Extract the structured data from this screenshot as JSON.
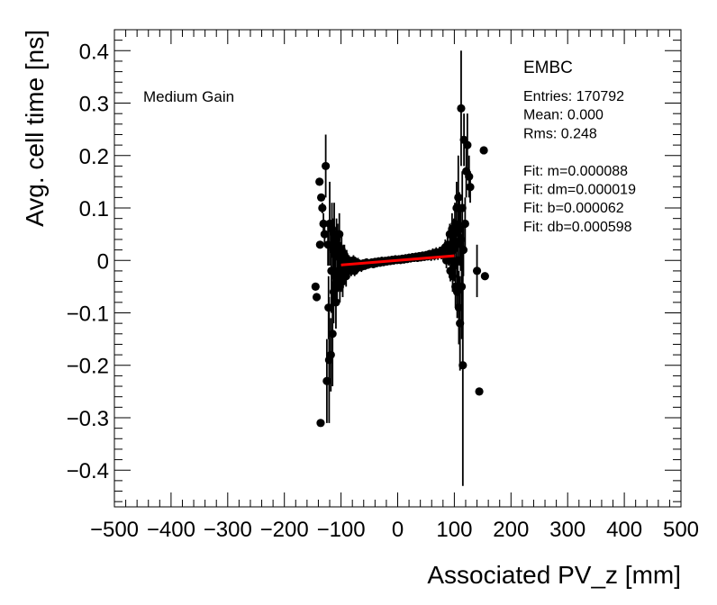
{
  "chart_data": {
    "type": "scatter",
    "xlabel": "Associated PV_z [mm]",
    "ylabel": "Avg. cell time [ns]",
    "xlim": [
      -500,
      500
    ],
    "ylim": [
      -0.47,
      0.44
    ],
    "x_ticks": [
      -500,
      -400,
      -300,
      -200,
      -100,
      0,
      100,
      200,
      300,
      400,
      500
    ],
    "x_tick_labels": [
      "−500",
      "−400",
      "−300",
      "−200",
      "−100",
      "0",
      "100",
      "200",
      "300",
      "400",
      "500"
    ],
    "y_ticks": [
      -0.4,
      -0.3,
      -0.2,
      -0.1,
      0,
      0.1,
      0.2,
      0.3,
      0.4
    ],
    "y_tick_labels": [
      "−0.4",
      "−0.3",
      "−0.2",
      "−0.1",
      "0",
      "0.1",
      "0.2",
      "0.3",
      "0.4"
    ],
    "annotation_left": "Medium Gain",
    "stats": {
      "title": "EMBC",
      "lines": [
        "Entries: 170792",
        "Mean: 0.000",
        "Rms: 0.248",
        "",
        "Fit: m=0.000088",
        "Fit: dm=0.000019",
        "Fit: b=0.000062",
        "Fit: db=0.000598"
      ]
    },
    "fit_line": {
      "x": [
        -100,
        100
      ],
      "y": [
        -0.0087,
        0.0089
      ],
      "color": "#ff0000"
    },
    "series": [
      {
        "name": "data",
        "color": "#000000",
        "points": [
          [
            -145,
            -0.05,
            0.0
          ],
          [
            -143,
            -0.07,
            0.0
          ],
          [
            -138,
            0.15,
            0.0
          ],
          [
            -137,
            0.03,
            0.0
          ],
          [
            -136,
            -0.31,
            0.0
          ],
          [
            -135,
            0.12,
            0.0
          ],
          [
            -133,
            0.1,
            0.01
          ],
          [
            -131,
            0.07,
            0.02
          ],
          [
            -129,
            0.05,
            0.02
          ],
          [
            -127,
            0.18,
            0.06
          ],
          [
            -125,
            -0.23,
            0.08
          ],
          [
            -123,
            0.03,
            0.04
          ],
          [
            -122,
            -0.09,
            0.06
          ],
          [
            -121,
            -0.19,
            0.12
          ],
          [
            -120,
            0.07,
            0.08
          ],
          [
            -118,
            -0.18,
            0.07
          ],
          [
            -117,
            -0.02,
            0.08
          ],
          [
            -116,
            0.06,
            0.05
          ],
          [
            -115,
            -0.14,
            0.1
          ],
          [
            -114,
            0.02,
            0.06
          ],
          [
            -113,
            -0.06,
            0.06
          ],
          [
            -112,
            0.05,
            0.06
          ],
          [
            -111,
            -0.03,
            0.05
          ],
          [
            -110,
            0.01,
            0.04
          ],
          [
            -109,
            -0.08,
            0.05
          ],
          [
            -108,
            0.04,
            0.04
          ],
          [
            -107,
            -0.04,
            0.04
          ],
          [
            -106,
            0.03,
            0.04
          ],
          [
            -105,
            -0.02,
            0.04
          ],
          [
            -104,
            0.02,
            0.03
          ],
          [
            -103,
            0.05,
            0.04
          ],
          [
            -102,
            -0.05,
            0.03
          ],
          [
            -101,
            0.0,
            0.03
          ],
          [
            -100,
            -0.03,
            0.03
          ],
          [
            -99,
            0.02,
            0.03
          ],
          [
            -98,
            -0.01,
            0.02
          ],
          [
            -97,
            -0.04,
            0.03
          ],
          [
            -96,
            0.01,
            0.02
          ],
          [
            -95,
            -0.02,
            0.02
          ],
          [
            -94,
            0.01,
            0.02
          ],
          [
            -93,
            -0.02,
            0.02
          ],
          [
            -92,
            0.0,
            0.02
          ],
          [
            -91,
            -0.03,
            0.02
          ],
          [
            -90,
            0.0,
            0.02
          ],
          [
            -88,
            -0.02,
            0.01
          ],
          [
            -86,
            0.0,
            0.01
          ],
          [
            -84,
            -0.01,
            0.01
          ],
          [
            -82,
            -0.02,
            0.01
          ],
          [
            -80,
            -0.01,
            0.01
          ],
          [
            -78,
            0.0,
            0.01
          ],
          [
            -76,
            -0.02,
            0.01
          ],
          [
            -74,
            -0.01,
            0.01
          ],
          [
            -72,
            -0.015,
            0.01
          ],
          [
            -70,
            -0.005,
            0.01
          ],
          [
            -67,
            -0.01,
            0.01
          ],
          [
            -64,
            -0.012,
            0.01
          ],
          [
            -61,
            -0.006,
            0.008
          ],
          [
            -58,
            -0.01,
            0.008
          ],
          [
            -55,
            -0.004,
            0.008
          ],
          [
            -52,
            -0.008,
            0.008
          ],
          [
            -49,
            -0.006,
            0.008
          ],
          [
            -46,
            -0.004,
            0.008
          ],
          [
            -43,
            -0.007,
            0.008
          ],
          [
            -40,
            -0.003,
            0.008
          ],
          [
            -37,
            -0.005,
            0.008
          ],
          [
            -34,
            -0.002,
            0.008
          ],
          [
            -31,
            -0.004,
            0.008
          ],
          [
            -28,
            -0.001,
            0.008
          ],
          [
            -25,
            -0.003,
            0.008
          ],
          [
            -22,
            -0.001,
            0.008
          ],
          [
            -19,
            -0.002,
            0.008
          ],
          [
            -16,
            0.0,
            0.008
          ],
          [
            -13,
            -0.001,
            0.008
          ],
          [
            -10,
            0.001,
            0.008
          ],
          [
            -7,
            0.0,
            0.008
          ],
          [
            -4,
            0.002,
            0.008
          ],
          [
            -1,
            0.001,
            0.008
          ],
          [
            2,
            0.002,
            0.008
          ],
          [
            5,
            0.001,
            0.008
          ],
          [
            8,
            0.003,
            0.008
          ],
          [
            11,
            0.002,
            0.008
          ],
          [
            14,
            0.004,
            0.008
          ],
          [
            17,
            0.003,
            0.008
          ],
          [
            20,
            0.005,
            0.008
          ],
          [
            23,
            0.004,
            0.008
          ],
          [
            26,
            0.006,
            0.008
          ],
          [
            29,
            0.005,
            0.008
          ],
          [
            32,
            0.007,
            0.008
          ],
          [
            35,
            0.005,
            0.008
          ],
          [
            38,
            0.008,
            0.008
          ],
          [
            41,
            0.006,
            0.008
          ],
          [
            44,
            0.009,
            0.008
          ],
          [
            47,
            0.007,
            0.008
          ],
          [
            50,
            0.01,
            0.008
          ],
          [
            53,
            0.008,
            0.008
          ],
          [
            56,
            0.012,
            0.008
          ],
          [
            59,
            0.009,
            0.01
          ],
          [
            62,
            0.013,
            0.01
          ],
          [
            65,
            0.01,
            0.01
          ],
          [
            68,
            0.015,
            0.01
          ],
          [
            71,
            0.011,
            0.01
          ],
          [
            74,
            0.016,
            0.01
          ],
          [
            77,
            0.012,
            0.01
          ],
          [
            80,
            0.02,
            0.01
          ],
          [
            82,
            0.01,
            0.012
          ],
          [
            84,
            0.025,
            0.015
          ],
          [
            86,
            0.0,
            0.015
          ],
          [
            88,
            0.03,
            0.02
          ],
          [
            90,
            0.01,
            0.02
          ],
          [
            92,
            0.05,
            0.02
          ],
          [
            93,
            -0.02,
            0.02
          ],
          [
            94,
            0.03,
            0.02
          ],
          [
            95,
            0.0,
            0.02
          ],
          [
            96,
            0.06,
            0.03
          ],
          [
            97,
            -0.03,
            0.03
          ],
          [
            98,
            0.02,
            0.03
          ],
          [
            99,
            0.05,
            0.03
          ],
          [
            100,
            -0.01,
            0.03
          ],
          [
            101,
            0.07,
            0.04
          ],
          [
            102,
            -0.05,
            0.04
          ],
          [
            103,
            0.03,
            0.04
          ],
          [
            104,
            0.1,
            0.05
          ],
          [
            105,
            -0.06,
            0.05
          ],
          [
            106,
            0.0,
            0.06
          ],
          [
            107,
            0.12,
            0.08
          ],
          [
            108,
            -0.09,
            0.07
          ],
          [
            109,
            0.06,
            0.07
          ],
          [
            110,
            -0.12,
            0.09
          ],
          [
            111,
            0.04,
            0.06
          ],
          [
            112,
            0.29,
            0.11
          ],
          [
            113,
            -0.05,
            0.1
          ],
          [
            114,
            0.1,
            0.07
          ],
          [
            115,
            -0.2,
            0.23
          ],
          [
            116,
            0.02,
            0.05
          ],
          [
            117,
            0.23,
            0.05
          ],
          [
            119,
            0.07,
            0.05
          ],
          [
            121,
            0.17,
            0.05
          ],
          [
            123,
            0.22,
            0.06
          ],
          [
            126,
            0.16,
            0.04
          ],
          [
            128,
            0.14,
            0.03
          ],
          [
            140,
            -0.02,
            0.05
          ],
          [
            144,
            -0.25,
            0.0
          ],
          [
            152,
            0.21,
            0.0
          ],
          [
            154,
            -0.03,
            0.0
          ]
        ]
      }
    ]
  }
}
